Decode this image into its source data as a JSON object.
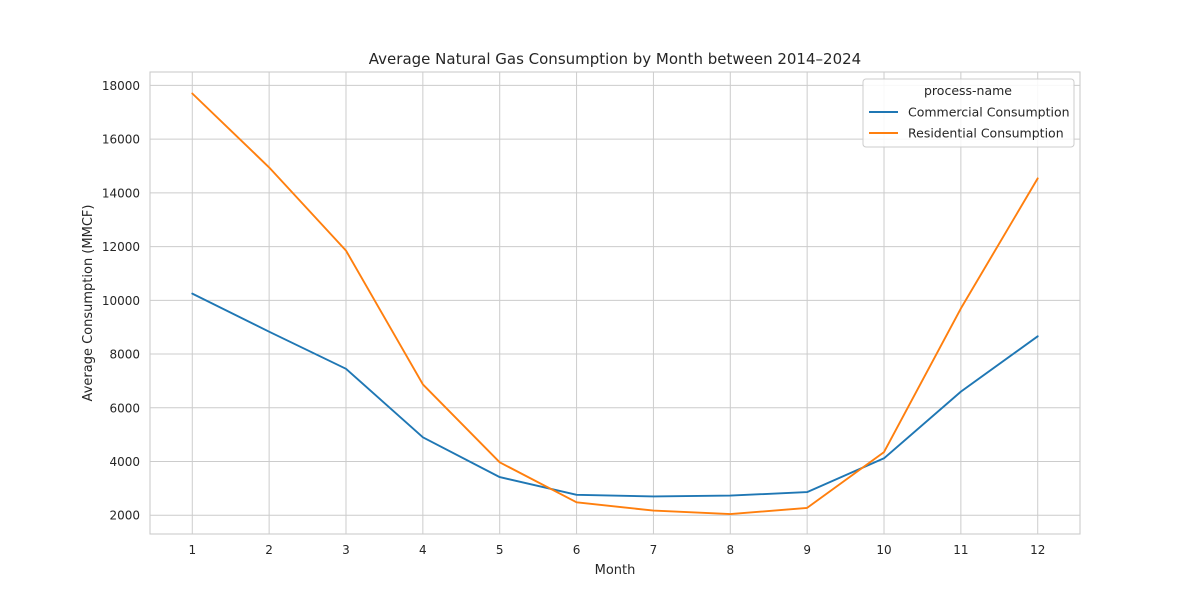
{
  "chart_data": {
    "type": "line",
    "title": "Average Natural Gas Consumption by Month between 2014–2024",
    "xlabel": "Month",
    "ylabel": "Average Consumption (MMCF)",
    "x": [
      1,
      2,
      3,
      4,
      5,
      6,
      7,
      8,
      9,
      10,
      11,
      12
    ],
    "xlim": [
      0.45,
      12.55
    ],
    "ylim": [
      1300,
      18500
    ],
    "yticks": [
      2000,
      4000,
      6000,
      8000,
      10000,
      12000,
      14000,
      16000,
      18000
    ],
    "grid": true,
    "legend": {
      "title": "process-name",
      "placement": "top-right"
    },
    "series": [
      {
        "name": "Commercial Consumption",
        "color": "#1f77b4",
        "values": [
          10250,
          8830,
          7450,
          4900,
          3420,
          2760,
          2700,
          2730,
          2860,
          4120,
          6600,
          8660
        ]
      },
      {
        "name": "Residential Consumption",
        "color": "#ff7f0e",
        "values": [
          17700,
          14950,
          11850,
          6870,
          3970,
          2480,
          2170,
          2040,
          2270,
          4350,
          9700,
          14540
        ]
      }
    ]
  }
}
